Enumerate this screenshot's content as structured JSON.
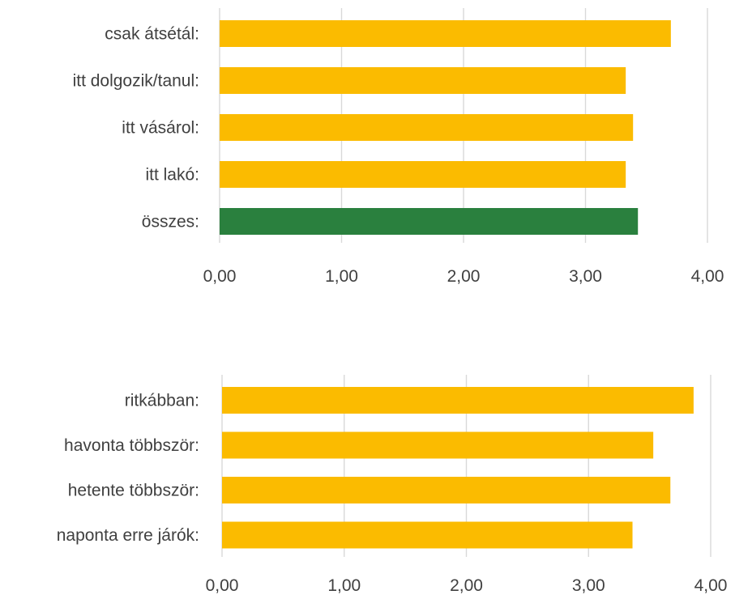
{
  "chart_data": [
    {
      "type": "bar",
      "orientation": "horizontal",
      "categories": [
        "csak átsétál:",
        "itt dolgozik/tanul:",
        "itt vásárol:",
        "itt lakó:",
        "összes:"
      ],
      "values": [
        3.7,
        3.33,
        3.39,
        3.33,
        3.43
      ],
      "bar_colors": [
        "#FBBB00",
        "#FBBB00",
        "#FBBB00",
        "#FBBB00",
        "#2A803E"
      ],
      "xlim": [
        0,
        4
      ],
      "tick_labels": [
        "0,00",
        "1,00",
        "2,00",
        "3,00",
        "4,00"
      ],
      "grid": "vertical",
      "legend": "none",
      "title": "",
      "xlabel": "",
      "ylabel": ""
    },
    {
      "type": "bar",
      "orientation": "horizontal",
      "categories": [
        "ritkábban:",
        "havonta többször:",
        "hetente többször:",
        "naponta erre járók:"
      ],
      "values": [
        3.86,
        3.53,
        3.67,
        3.36
      ],
      "bar_colors": [
        "#FBBB00",
        "#FBBB00",
        "#FBBB00",
        "#FBBB00"
      ],
      "xlim": [
        0,
        4
      ],
      "tick_labels": [
        "0,00",
        "1,00",
        "2,00",
        "3,00",
        "4,00"
      ],
      "grid": "vertical",
      "legend": "none",
      "title": "",
      "xlabel": "",
      "ylabel": ""
    }
  ]
}
